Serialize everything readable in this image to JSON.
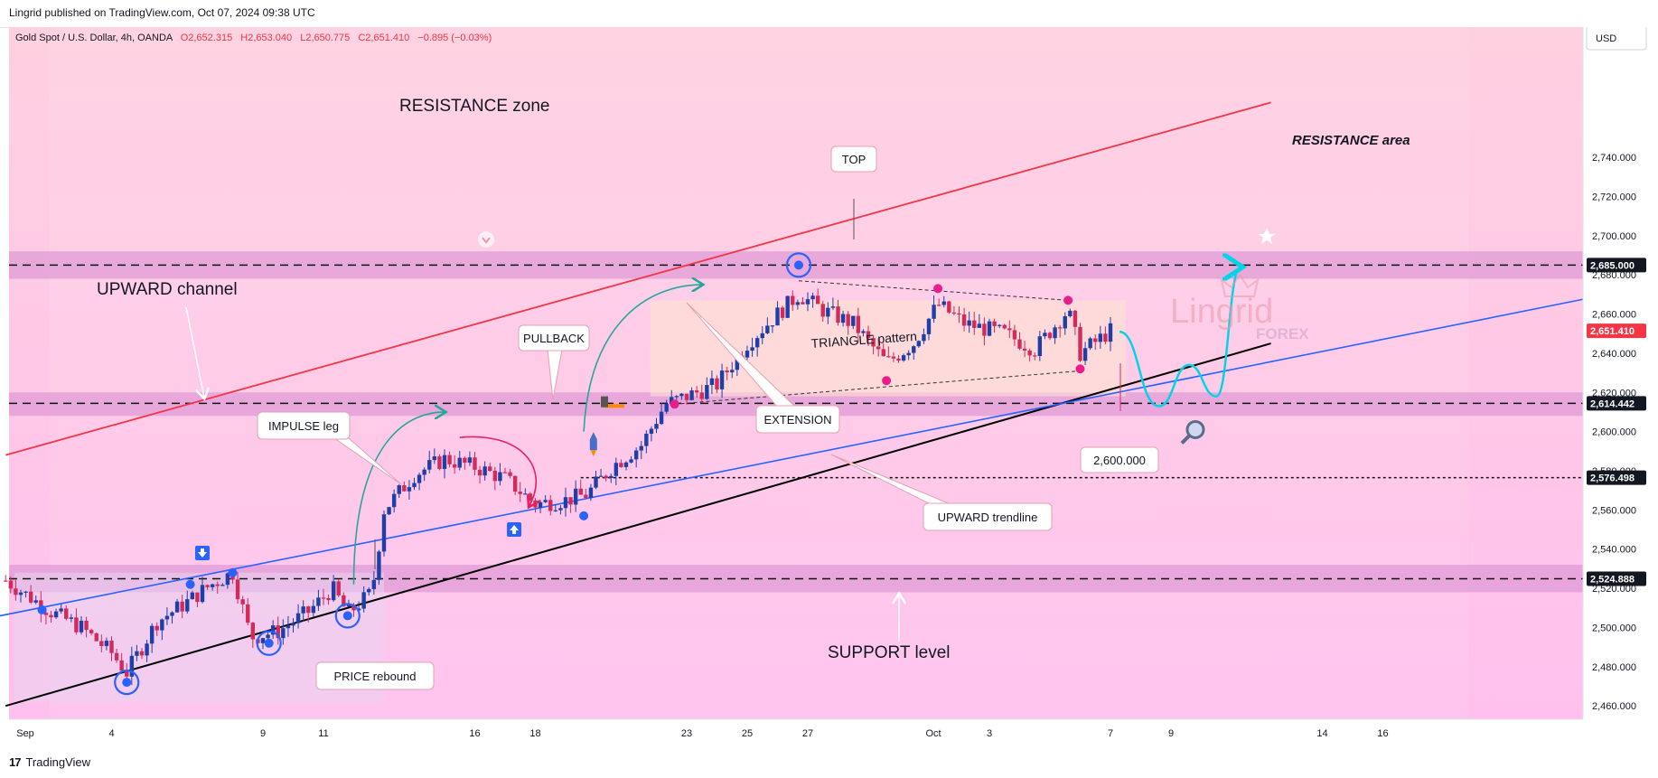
{
  "header": {
    "published": "Lingrid published on TradingView.com, Oct 07, 2024 09:38 UTC"
  },
  "footer": {
    "brand": "TradingView"
  },
  "symbol_line": {
    "name": "Gold Spot / U.S. Dollar, 4h, OANDA",
    "o": "O2,652.315",
    "h": "H2,653.040",
    "l": "L2,650.775",
    "c": "C2,651.410",
    "change": "−0.895 (−0.03%)"
  },
  "currency": "USD",
  "colors": {
    "up": "#1e3fa8",
    "down": "#d22b5b",
    "channel": "#f23645",
    "trendline": "#2962ff",
    "support_line": "#000000",
    "zone": "#d58ad0",
    "price_tag": "#f23645",
    "arrow_green": "#26a69a",
    "arrow_pink": "#e91e63",
    "projection": "#00d5e8",
    "marker_pink": "#e91e8c"
  },
  "annotations": {
    "resistance_zone": "RESISTANCE zone",
    "resistance_area": "RESISTANCE area",
    "upward_channel": "UPWARD channel",
    "top": "TOP",
    "pullback": "PULLBACK",
    "impulse_leg": "IMPULSE leg",
    "extension": "EXTENSION",
    "triangle": "TRIANGLE pattern",
    "upward_trendline": "UPWARD trendline",
    "price_rebound": "PRICE rebound",
    "support_level": "SUPPORT level",
    "level_2600": "2,600.000",
    "watermark_main": "Lingrid",
    "watermark_sub": "FOREX"
  },
  "chart_data": {
    "type": "candlestick",
    "symbol": "Gold Spot / U.S. Dollar",
    "timeframe": "4h",
    "ylim": [
      2455,
      2770
    ],
    "y_ticks": [
      2460,
      2480,
      2500,
      2520,
      2540,
      2560,
      2580,
      2600,
      2620,
      2640,
      2660,
      2680,
      2700,
      2720,
      2740
    ],
    "y_tick_labels": [
      "2,460.000",
      "2,480.000",
      "2,500.000",
      "2,520.000",
      "2,540.000",
      "2,560.000",
      "2,580.000",
      "2,600.000",
      "2,620.000",
      "2,640.000",
      "2,660.000",
      "2,680.000",
      "2,700.000",
      "2,720.000",
      "2,740.000"
    ],
    "x_labels": [
      {
        "label": "Sep",
        "day": 0
      },
      {
        "label": "4",
        "day": 3
      },
      {
        "label": "9",
        "day": 8
      },
      {
        "label": "11",
        "day": 10
      },
      {
        "label": "16",
        "day": 15
      },
      {
        "label": "18",
        "day": 17
      },
      {
        "label": "23",
        "day": 22
      },
      {
        "label": "25",
        "day": 24
      },
      {
        "label": "27",
        "day": 26
      },
      {
        "label": "Oct",
        "day": 30
      },
      {
        "label": "3",
        "day": 32
      },
      {
        "label": "7",
        "day": 36
      },
      {
        "label": "9",
        "day": 38
      },
      {
        "label": "14",
        "day": 43
      },
      {
        "label": "16",
        "day": 45
      }
    ],
    "price_levels": [
      {
        "value": 2685.0,
        "label": "2,685.000",
        "style": "dashed"
      },
      {
        "value": 2614.442,
        "label": "2,614.442",
        "style": "dashed"
      },
      {
        "value": 2576.498,
        "label": "2,576.498",
        "style": "dotted"
      },
      {
        "value": 2524.888,
        "label": "2,524.888",
        "style": "dashed"
      }
    ],
    "last_price": {
      "value": 2651.41,
      "label": "2,651.410"
    },
    "zones": [
      {
        "from": 2678,
        "to": 2692
      },
      {
        "from": 2608,
        "to": 2620
      },
      {
        "from": 2518,
        "to": 2532
      }
    ],
    "close_path": [
      {
        "day": -0.5,
        "close": 2524
      },
      {
        "day": 1,
        "close": 2508
      },
      {
        "day": 2,
        "close": 2500
      },
      {
        "day": 3,
        "close": 2487
      },
      {
        "day": 3.5,
        "close": 2477
      },
      {
        "day": 4.5,
        "close": 2503
      },
      {
        "day": 5.5,
        "close": 2513
      },
      {
        "day": 6.2,
        "close": 2521
      },
      {
        "day": 7,
        "close": 2528
      },
      {
        "day": 7.6,
        "close": 2495
      },
      {
        "day": 8.5,
        "close": 2498
      },
      {
        "day": 9.5,
        "close": 2508
      },
      {
        "day": 10.3,
        "close": 2520
      },
      {
        "day": 10.8,
        "close": 2507
      },
      {
        "day": 11.6,
        "close": 2518
      },
      {
        "day": 12,
        "close": 2560
      },
      {
        "day": 13,
        "close": 2578
      },
      {
        "day": 14,
        "close": 2586
      },
      {
        "day": 15,
        "close": 2582
      },
      {
        "day": 16,
        "close": 2576
      },
      {
        "day": 17,
        "close": 2563
      },
      {
        "day": 18,
        "close": 2565
      },
      {
        "day": 18.7,
        "close": 2568
      },
      {
        "day": 19.6,
        "close": 2583
      },
      {
        "day": 20.5,
        "close": 2593
      },
      {
        "day": 21.3,
        "close": 2614
      },
      {
        "day": 22,
        "close": 2618
      },
      {
        "day": 23,
        "close": 2624
      },
      {
        "day": 24,
        "close": 2645
      },
      {
        "day": 25,
        "close": 2660
      },
      {
        "day": 25.7,
        "close": 2670
      },
      {
        "day": 26.5,
        "close": 2662
      },
      {
        "day": 27.5,
        "close": 2655
      },
      {
        "day": 28.6,
        "close": 2635
      },
      {
        "day": 29.5,
        "close": 2645
      },
      {
        "day": 30.3,
        "close": 2665
      },
      {
        "day": 31.2,
        "close": 2655
      },
      {
        "day": 32.5,
        "close": 2650
      },
      {
        "day": 33.5,
        "close": 2642
      },
      {
        "day": 34.6,
        "close": 2662
      },
      {
        "day": 35,
        "close": 2640
      },
      {
        "day": 36,
        "close": 2651.41
      }
    ],
    "projection": [
      {
        "day": 36.3,
        "price": 2651
      },
      {
        "day": 37.6,
        "price": 2613
      },
      {
        "day": 38.6,
        "price": 2634
      },
      {
        "day": 39.5,
        "price": 2618
      },
      {
        "day": 40.3,
        "price": 2684
      }
    ],
    "channel_line": [
      {
        "day": -0.5,
        "price": 2588
      },
      {
        "day": 41.3,
        "price": 2768
      }
    ],
    "support_line": [
      {
        "day": -0.5,
        "price": 2460
      },
      {
        "day": 41.3,
        "price": 2645
      }
    ],
    "trendline": [
      {
        "day": -1,
        "price": 2505
      },
      {
        "day": 44,
        "price": 2644
      }
    ]
  }
}
